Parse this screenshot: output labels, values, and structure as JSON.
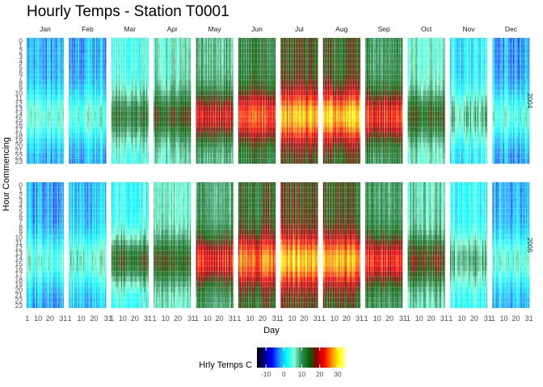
{
  "chart_data": {
    "type": "heatmap",
    "title": "Hourly Temps - Station T0001",
    "xlabel": "Day",
    "ylabel": "Hour Commencing",
    "facet_columns": [
      "Jan",
      "Feb",
      "Mar",
      "Apr",
      "May",
      "Jun",
      "Jul",
      "Aug",
      "Sep",
      "Oct",
      "Nov",
      "Dec"
    ],
    "facet_rows": [
      "2004",
      "2005"
    ],
    "x_ticks": [
      "1",
      "10",
      "20",
      "31"
    ],
    "y_ticks": [
      "0",
      "1",
      "2",
      "3",
      "4",
      "5",
      "6",
      "7",
      "8",
      "9",
      "10",
      "11",
      "12",
      "13",
      "14",
      "15",
      "16",
      "17",
      "18",
      "19",
      "20",
      "21",
      "22",
      "23"
    ],
    "y_reversed": true,
    "legend": {
      "title": "Hrly Temps C",
      "position": "bottom",
      "ticks": [
        -10,
        0,
        10,
        20,
        30
      ],
      "range": [
        -15,
        35
      ],
      "colors": [
        "#000000",
        "#00008b",
        "#0000ff",
        "#1e90ff",
        "#00ffff",
        "#7fffd4",
        "#2e8b57",
        "#006400",
        "#8b0000",
        "#ff0000",
        "#ff8c00",
        "#ffff00",
        "#ffffe0"
      ]
    },
    "monthly_temps_c": {
      "description": "approximate night-time minimum and afternoon maximum per month",
      "2004": {
        "night_min": [
          -2,
          -1,
          4,
          6,
          9,
          13,
          15,
          15,
          11,
          6,
          1,
          -2
        ],
        "day_max": [
          5,
          6,
          13,
          15,
          21,
          25,
          28,
          29,
          23,
          15,
          8,
          5
        ]
      },
      "2005": {
        "night_min": [
          -2,
          -1,
          3,
          6,
          10,
          14,
          16,
          15,
          11,
          7,
          2,
          -2
        ],
        "day_max": [
          5,
          6,
          15,
          15,
          22,
          26,
          29,
          28,
          23,
          17,
          9,
          5
        ]
      }
    }
  }
}
